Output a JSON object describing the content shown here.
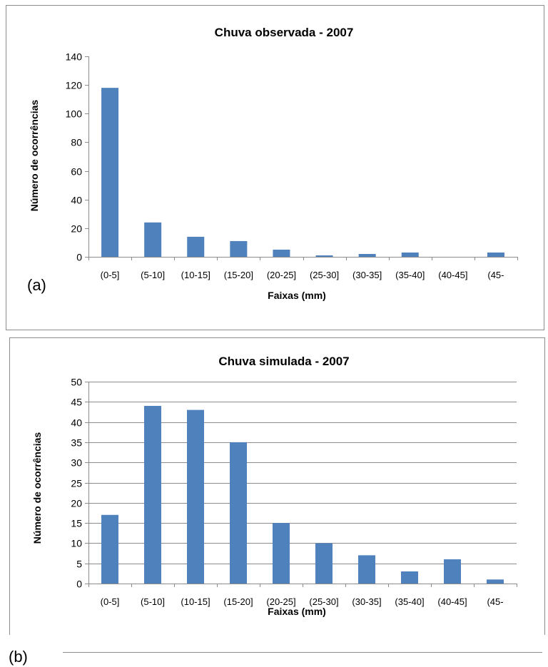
{
  "chart_data": [
    {
      "type": "bar",
      "panel_letter": "(a)",
      "title": "Chuva observada - 2007",
      "xlabel": "Faixas (mm)",
      "ylabel": "Número de ocorrências",
      "categories": [
        "(0-5]",
        "(5-10]",
        "(10-15]",
        "(15-20]",
        "(20-25]",
        "(25-30]",
        "(30-35]",
        "(35-40]",
        "(40-45]",
        "(45-"
      ],
      "values": [
        118,
        24,
        14,
        11,
        5,
        1,
        2,
        3,
        0,
        3
      ],
      "ylim": [
        0,
        140
      ],
      "yticks": [
        "0",
        "20",
        "40",
        "60",
        "80",
        "100",
        "120",
        "140"
      ],
      "ytick_values": [
        0,
        20,
        40,
        60,
        80,
        100,
        120,
        140
      ],
      "grid": false,
      "bar_color": "#4f81bd"
    },
    {
      "type": "bar",
      "panel_letter": "(b)",
      "title": "Chuva simulada - 2007",
      "xlabel": "Faixas (mm)",
      "ylabel": "Número de ocorrências",
      "categories": [
        "(0-5]",
        "(5-10]",
        "(10-15]",
        "(15-20]",
        "(20-25]",
        "(25-30]",
        "(30-35]",
        "(35-40]",
        "(40-45]",
        "(45-"
      ],
      "values": [
        17,
        44,
        43,
        35,
        15,
        10,
        7,
        3,
        6,
        1
      ],
      "ylim": [
        0,
        50
      ],
      "yticks": [
        "0",
        "5",
        "10",
        "15",
        "20",
        "25",
        "30",
        "35",
        "40",
        "45",
        "50"
      ],
      "ytick_values": [
        0,
        5,
        10,
        15,
        20,
        25,
        30,
        35,
        40,
        45,
        50
      ],
      "grid": true,
      "bar_color": "#4f81bd"
    }
  ]
}
